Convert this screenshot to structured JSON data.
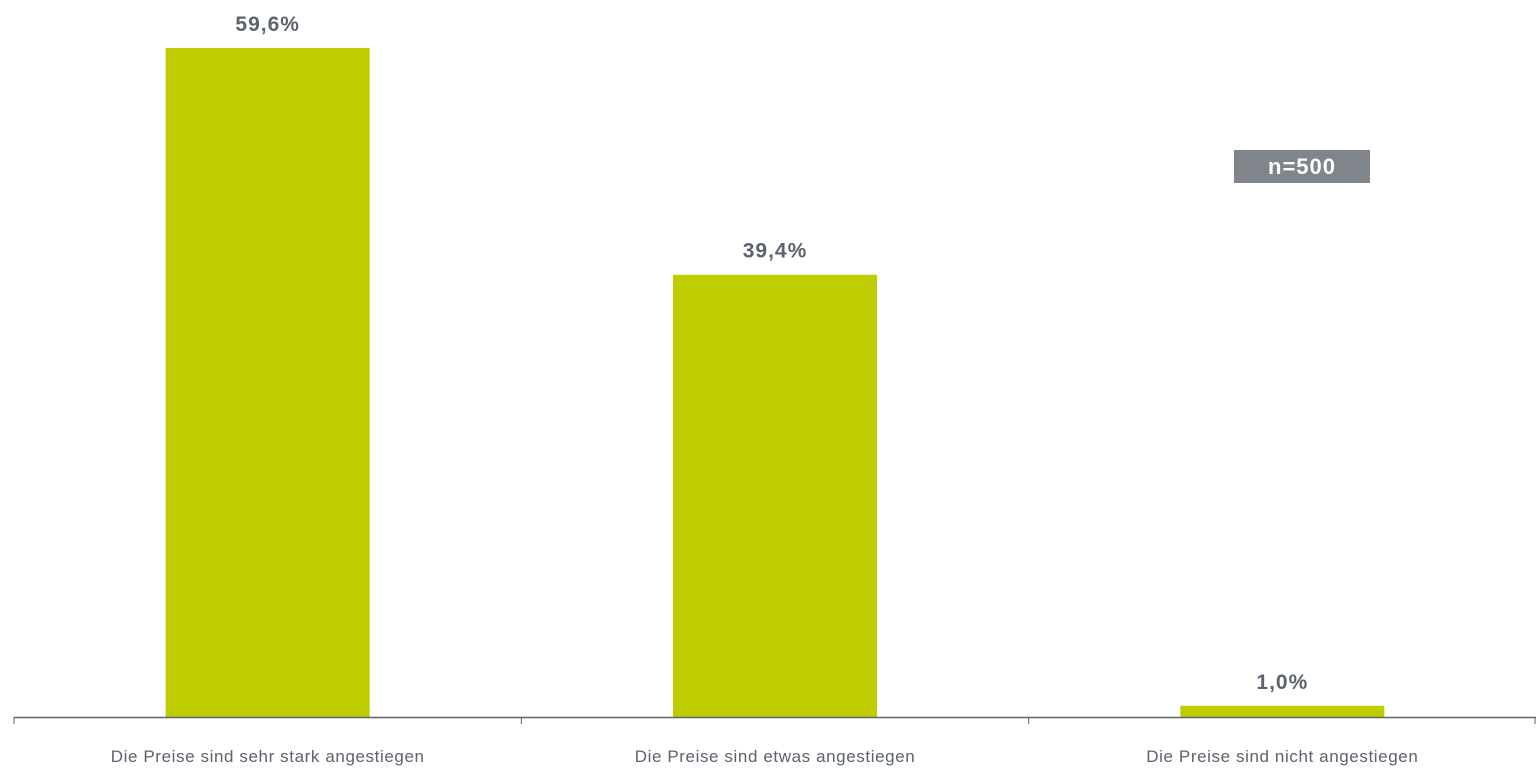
{
  "chart_data": {
    "type": "bar",
    "title": "",
    "xlabel": "",
    "ylabel": "",
    "categories": [
      "Die Preise sind sehr stark angestiegen",
      "Die Preise sind etwas angestiegen",
      "Die Preise sind nicht angestiegen"
    ],
    "values": [
      59.6,
      39.4,
      1.0
    ],
    "data_labels": [
      "59,6%",
      "39,4%",
      "1,0%"
    ],
    "unit": "%",
    "ylim": [
      0,
      60
    ],
    "grid": false,
    "legend": "none",
    "annotations": [
      {
        "text": "n=500",
        "placement": "top-right"
      }
    ]
  },
  "colors": {
    "bar": "#bfcc00",
    "label_text": "#5b636d",
    "axis": "#5b636d",
    "badge_bg": "#7f858b",
    "badge_text": "#ffffff"
  }
}
